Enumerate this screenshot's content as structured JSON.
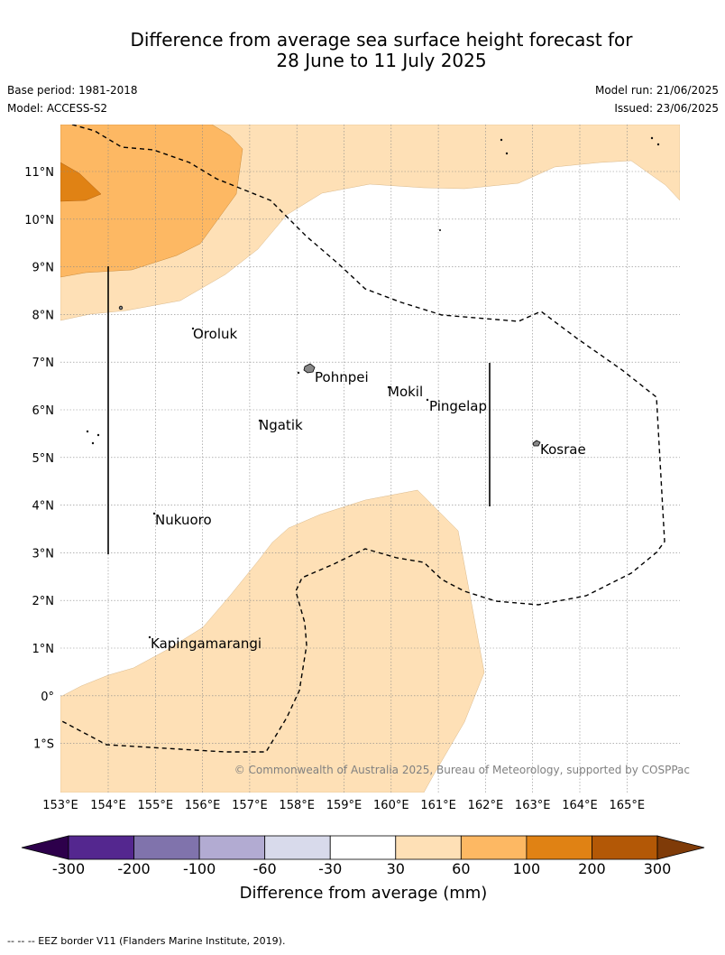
{
  "header": {
    "title_line1": "Difference from average sea surface height forecast for",
    "title_line2": "28 June to 11 July 2025",
    "base_period": "Base period: 1981-2018",
    "model": "Model: ACCESS-S2",
    "model_run": "Model run: 21/06/2025",
    "issued": "Issued: 23/06/2025"
  },
  "map": {
    "lon_ticks": [
      "153°E",
      "154°E",
      "155°E",
      "156°E",
      "157°E",
      "158°E",
      "159°E",
      "160°E",
      "161°E",
      "162°E",
      "163°E",
      "164°E",
      "165°E"
    ],
    "lat_ticks": [
      "11°N",
      "10°N",
      "9°N",
      "8°N",
      "7°N",
      "6°N",
      "5°N",
      "4°N",
      "3°N",
      "2°N",
      "1°N",
      "0°",
      "1°S"
    ],
    "places": [
      "Oroluk",
      "Pohnpei",
      "Mokil",
      "Pingelap",
      "Ngatik",
      "Kosrae",
      "Nukuoro",
      "Kapingamarangi"
    ],
    "copyright": "© Commonwealth of Australia 2025, Bureau of Meteorology, supported by COSPPac"
  },
  "colorbar": {
    "ticks": [
      "-300",
      "-200",
      "-100",
      "-60",
      "-30",
      "30",
      "60",
      "100",
      "200",
      "300"
    ],
    "label": "Difference from average (mm)",
    "colors": [
      "#54278f",
      "#8073ac",
      "#b2abd2",
      "#d8daeb",
      "#ffffff",
      "#fee0b6",
      "#fdb863",
      "#e08214",
      "#b35806"
    ],
    "under_color": "#2d004b",
    "over_color": "#7f3b08"
  },
  "footnote": "--  --  -- EEZ border V11 (Flanders Marine Institute, 2019)."
}
